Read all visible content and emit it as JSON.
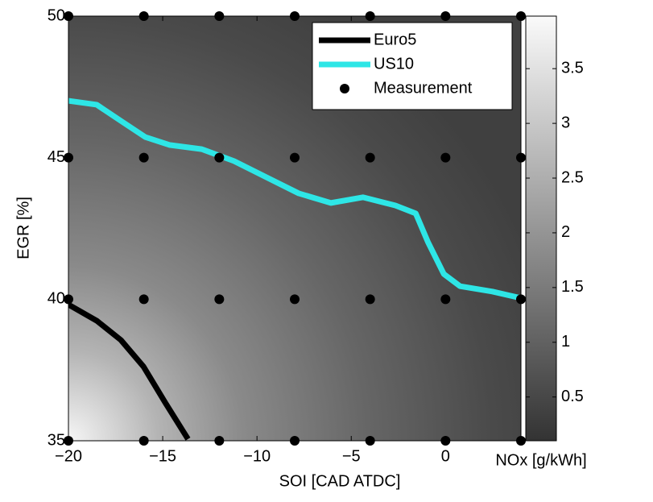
{
  "chart_data": {
    "type": "contour",
    "xlabel": "SOI [CAD ATDC]",
    "ylabel": "EGR [%]",
    "xlim": [
      -20,
      4
    ],
    "ylim": [
      35,
      50
    ],
    "xticks": [
      {
        "value": -20,
        "label": "−20"
      },
      {
        "value": -15,
        "label": "−15"
      },
      {
        "value": -10,
        "label": "−10"
      },
      {
        "value": -5,
        "label": "−5"
      },
      0
    ],
    "yticks": [
      35,
      40,
      45,
      50
    ],
    "colormap": "gray",
    "colorbar": {
      "label": "NOx [g/kWh]",
      "lim": [
        0.1,
        3.98
      ],
      "ticks": [
        0.5,
        1,
        1.5,
        2,
        2.5,
        3,
        3.5
      ]
    },
    "legend": "upper right",
    "series": [
      {
        "name": "Euro5",
        "type": "line",
        "color": "#000000",
        "x": [
          -20,
          -18.5,
          -17.22,
          -16.02,
          -14.86,
          -13.66
        ],
        "y": [
          39.81,
          39.24,
          38.56,
          37.62,
          36.34,
          35.06
        ]
      },
      {
        "name": "US10",
        "type": "line",
        "color": "#2ee6e6",
        "x": [
          -20,
          -18.5,
          -17.22,
          -15.93,
          -14.65,
          -12.93,
          -11.22,
          -9.51,
          -7.79,
          -6.08,
          -4.37,
          -2.66,
          -1.58,
          -0.94,
          -0.09,
          0.77,
          2.48,
          4
        ],
        "y": [
          47.01,
          46.87,
          46.3,
          45.73,
          45.45,
          45.3,
          44.88,
          44.31,
          43.74,
          43.4,
          43.6,
          43.31,
          43.03,
          42.03,
          40.89,
          40.46,
          40.27,
          40.04
        ]
      },
      {
        "name": "Measurement",
        "type": "scatter",
        "color": "#000000",
        "x": [
          -20,
          -16,
          -12,
          -8,
          -4,
          0,
          4,
          -20,
          -16,
          -12,
          -8,
          -4,
          0,
          4,
          -20,
          -16,
          -12,
          -8,
          -4,
          0,
          4,
          -20,
          -16,
          -12,
          -8,
          -4,
          0,
          4
        ],
        "y": [
          50,
          50,
          50,
          50,
          50,
          50,
          50,
          45,
          45,
          45,
          45,
          45,
          45,
          45,
          40,
          40,
          40,
          40,
          40,
          40,
          40,
          35,
          35,
          35,
          35,
          35,
          35,
          35
        ]
      }
    ]
  }
}
